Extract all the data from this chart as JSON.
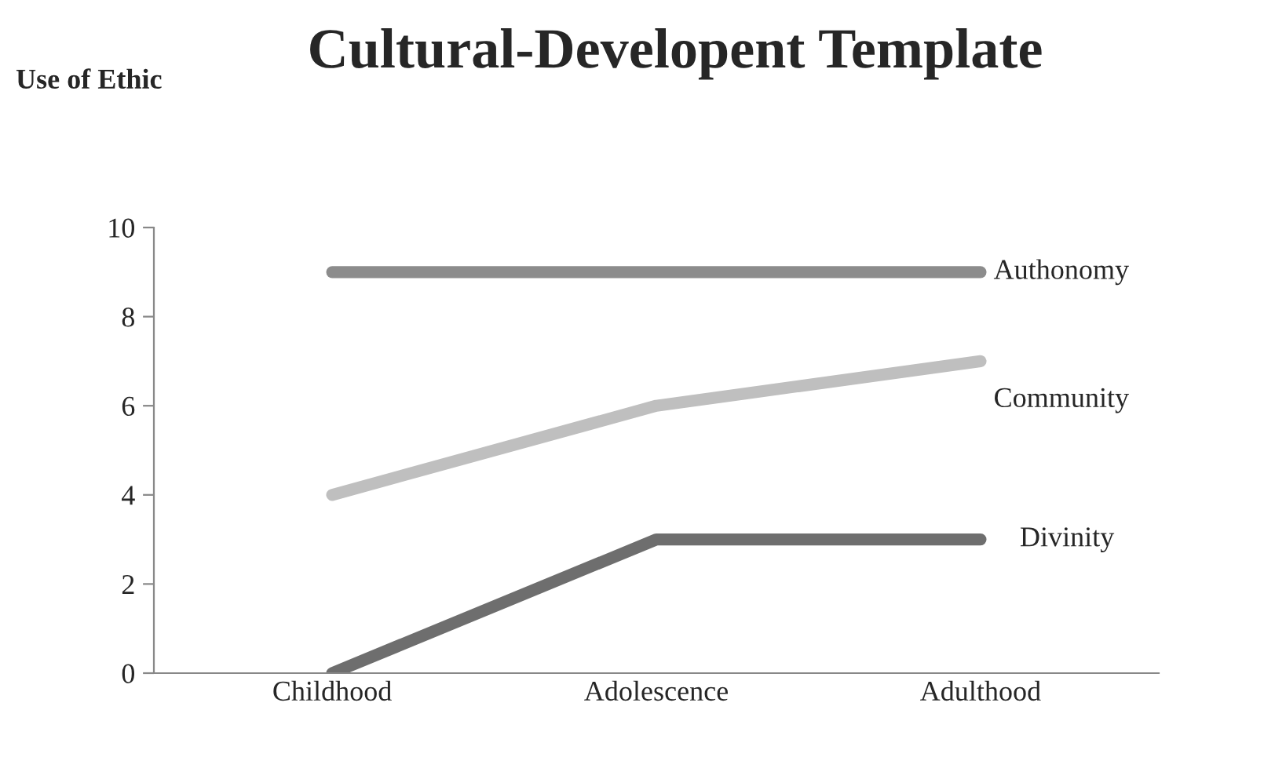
{
  "chart_data": {
    "type": "line",
    "title": "Cultural-Developent Template",
    "ylabel": "Use of Ethic",
    "categories": [
      "Childhood",
      "Adolescence",
      "Adulthood"
    ],
    "series": [
      {
        "name": "Authonomy",
        "color": "#8c8c8c",
        "values": [
          9,
          9,
          9
        ]
      },
      {
        "name": "Community",
        "color": "#bfbfbf",
        "values": [
          4,
          6,
          7
        ]
      },
      {
        "name": "Divinity",
        "color": "#6e6e6e",
        "values": [
          0,
          3,
          3
        ]
      }
    ],
    "ylim": [
      0,
      10
    ],
    "yticks": [
      0,
      2,
      4,
      6,
      8,
      10
    ],
    "grid": false,
    "marker": "none",
    "line_style": "solid"
  }
}
